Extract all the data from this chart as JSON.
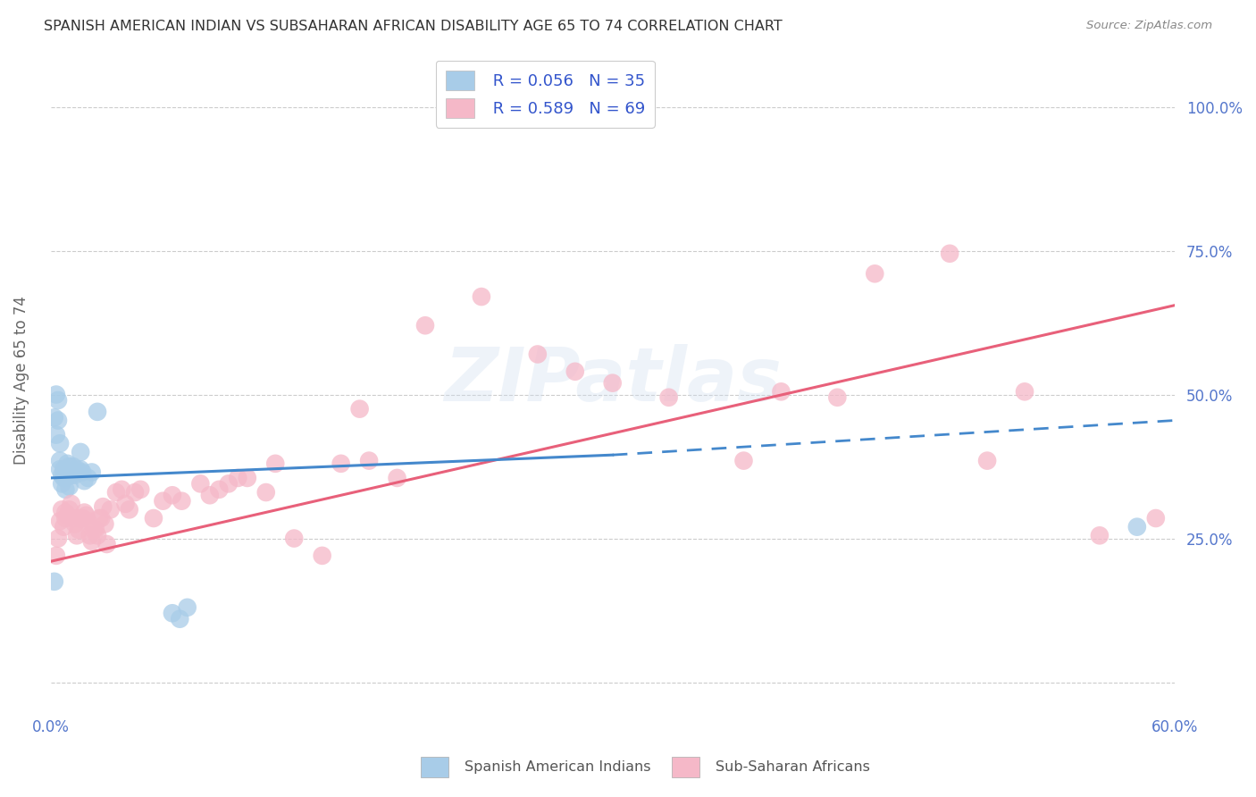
{
  "title": "SPANISH AMERICAN INDIAN VS SUBSAHARAN AFRICAN DISABILITY AGE 65 TO 74 CORRELATION CHART",
  "source": "Source: ZipAtlas.com",
  "ylabel": "Disability Age 65 to 74",
  "yticks": [
    0.0,
    0.25,
    0.5,
    0.75,
    1.0
  ],
  "ytick_labels": [
    "",
    "25.0%",
    "50.0%",
    "75.0%",
    "100.0%"
  ],
  "xlim": [
    0.0,
    0.6
  ],
  "ylim": [
    -0.05,
    1.1
  ],
  "watermark_zip": "ZIP",
  "watermark_atlas": "atlas",
  "series1_name": "Spanish American Indians",
  "series1_R": "0.056",
  "series1_N": "35",
  "series1_color": "#a8cce8",
  "series1_trend_color": "#4488cc",
  "series2_name": "Sub-Saharan Africans",
  "series2_R": "0.589",
  "series2_N": "69",
  "series2_color": "#f5b8c8",
  "series2_trend_color": "#e8607a",
  "series1_x": [
    0.002,
    0.002,
    0.003,
    0.003,
    0.004,
    0.004,
    0.005,
    0.005,
    0.005,
    0.006,
    0.006,
    0.007,
    0.007,
    0.008,
    0.008,
    0.009,
    0.009,
    0.01,
    0.01,
    0.011,
    0.012,
    0.013,
    0.014,
    0.015,
    0.016,
    0.016,
    0.017,
    0.018,
    0.02,
    0.022,
    0.025,
    0.065,
    0.069,
    0.073,
    0.58
  ],
  "series1_y": [
    0.175,
    0.46,
    0.43,
    0.5,
    0.455,
    0.49,
    0.37,
    0.385,
    0.415,
    0.345,
    0.36,
    0.355,
    0.37,
    0.335,
    0.355,
    0.36,
    0.38,
    0.34,
    0.375,
    0.36,
    0.375,
    0.36,
    0.37,
    0.365,
    0.37,
    0.4,
    0.365,
    0.35,
    0.355,
    0.365,
    0.47,
    0.12,
    0.11,
    0.13,
    0.27
  ],
  "series2_x": [
    0.003,
    0.004,
    0.005,
    0.006,
    0.007,
    0.008,
    0.008,
    0.009,
    0.01,
    0.011,
    0.012,
    0.013,
    0.014,
    0.015,
    0.016,
    0.017,
    0.018,
    0.019,
    0.02,
    0.021,
    0.022,
    0.023,
    0.024,
    0.025,
    0.026,
    0.027,
    0.028,
    0.029,
    0.03,
    0.032,
    0.035,
    0.038,
    0.04,
    0.042,
    0.045,
    0.048,
    0.055,
    0.06,
    0.065,
    0.07,
    0.08,
    0.085,
    0.09,
    0.095,
    0.1,
    0.105,
    0.115,
    0.12,
    0.13,
    0.145,
    0.155,
    0.165,
    0.17,
    0.185,
    0.2,
    0.23,
    0.26,
    0.28,
    0.3,
    0.33,
    0.37,
    0.39,
    0.42,
    0.44,
    0.48,
    0.5,
    0.52,
    0.56,
    0.59
  ],
  "series2_y": [
    0.22,
    0.25,
    0.28,
    0.3,
    0.27,
    0.285,
    0.295,
    0.29,
    0.3,
    0.31,
    0.285,
    0.275,
    0.255,
    0.265,
    0.285,
    0.285,
    0.295,
    0.29,
    0.28,
    0.255,
    0.245,
    0.265,
    0.265,
    0.255,
    0.285,
    0.285,
    0.305,
    0.275,
    0.24,
    0.3,
    0.33,
    0.335,
    0.31,
    0.3,
    0.33,
    0.335,
    0.285,
    0.315,
    0.325,
    0.315,
    0.345,
    0.325,
    0.335,
    0.345,
    0.355,
    0.355,
    0.33,
    0.38,
    0.25,
    0.22,
    0.38,
    0.475,
    0.385,
    0.355,
    0.62,
    0.67,
    0.57,
    0.54,
    0.52,
    0.495,
    0.385,
    0.505,
    0.495,
    0.71,
    0.745,
    0.385,
    0.505,
    0.255,
    0.285
  ],
  "series1_trend_x0": 0.0,
  "series1_trend_x_break": 0.3,
  "series1_trend_x1": 0.6,
  "series1_trend_y0": 0.355,
  "series1_trend_y_break": 0.395,
  "series1_trend_y1": 0.455,
  "series2_trend_y0": 0.21,
  "series2_trend_y1": 0.655,
  "background_color": "#ffffff",
  "grid_color": "#cccccc"
}
